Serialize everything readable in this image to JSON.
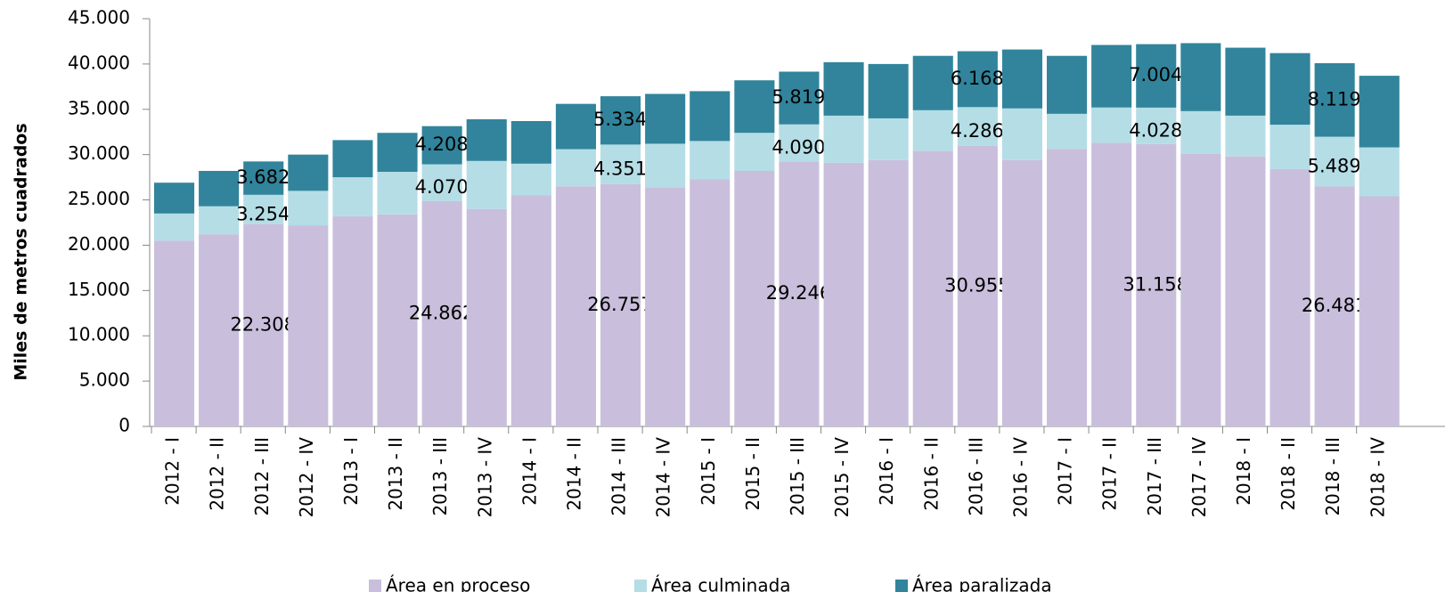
{
  "chart_data": {
    "type": "stacked_bar",
    "y_label": "Miles de metros cuadrados",
    "categories": [
      "2012 - I",
      "2012 - II",
      "2012 - III",
      "2012 - IV",
      "2013 - I",
      "2013 - II",
      "2013 - III",
      "2013 - IV",
      "2014 - I",
      "2014 - II",
      "2014 - III",
      "2014 - IV",
      "2015 - I",
      "2015 - II",
      "2015 - III",
      "2015 - IV",
      "2016 - I",
      "2016 - II",
      "2016 - III",
      "2016 - IV",
      "2017 - I",
      "2017 - II",
      "2017 - III",
      "2017 - IV",
      "2018 - I",
      "2018 - II",
      "2018 - III",
      "2018 - IV"
    ],
    "series": [
      {
        "name": "Área en proceso",
        "color": "#c9bfdc",
        "values": [
          20500,
          21200,
          22308,
          22200,
          23200,
          23400,
          24862,
          24000,
          25500,
          26500,
          26757,
          26400,
          27300,
          28200,
          29246,
          29100,
          29400,
          30400,
          30955,
          29400,
          30600,
          31300,
          31158,
          30100,
          29800,
          28400,
          26481,
          25400
        ],
        "value_labels": [
          null,
          null,
          "22.308",
          null,
          null,
          null,
          "24.862",
          null,
          null,
          null,
          "26.757",
          null,
          null,
          null,
          "29.246",
          null,
          null,
          null,
          "30.955",
          null,
          null,
          null,
          "31.158",
          null,
          null,
          null,
          "26.481",
          null
        ]
      },
      {
        "name": "Área culminada",
        "color": "#b5dde6",
        "values": [
          3000,
          3100,
          3254,
          3800,
          4300,
          4700,
          4070,
          5300,
          3500,
          4100,
          4351,
          4800,
          4200,
          4200,
          4090,
          5200,
          4600,
          4500,
          4286,
          5700,
          3900,
          3900,
          4028,
          4700,
          4500,
          4900,
          5489,
          5400
        ],
        "value_labels": [
          null,
          null,
          "3.254",
          null,
          null,
          null,
          "4.070",
          null,
          null,
          null,
          "4.351",
          null,
          null,
          null,
          "4.090",
          null,
          null,
          null,
          "4.286",
          null,
          null,
          null,
          "4.028",
          null,
          null,
          null,
          "5.489",
          null
        ]
      },
      {
        "name": "Área paralizada",
        "color": "#31849b",
        "values": [
          3400,
          3900,
          3682,
          4000,
          4100,
          4300,
          4208,
          4600,
          4700,
          5000,
          5334,
          5500,
          5500,
          5800,
          5819,
          5900,
          6000,
          6000,
          6168,
          6500,
          6400,
          6900,
          7004,
          7500,
          7500,
          7900,
          8119,
          7900
        ],
        "value_labels": [
          null,
          null,
          "3.682",
          null,
          null,
          null,
          "4.208",
          null,
          null,
          null,
          "5.334",
          null,
          null,
          null,
          "5.819",
          null,
          null,
          null,
          "6.168",
          null,
          null,
          null,
          "7.004",
          null,
          null,
          null,
          "8.119",
          null
        ]
      }
    ],
    "ylim": [
      0,
      45000
    ],
    "yticks": [
      0,
      {
        "value": 5000,
        "label": "5.000"
      },
      {
        "value": 10000,
        "label": "10.000"
      },
      {
        "value": 15000,
        "label": "15.000"
      },
      {
        "value": 20000,
        "label": "20.000"
      },
      {
        "value": 25000,
        "label": "25.000"
      },
      {
        "value": 30000,
        "label": "30.000"
      },
      {
        "value": 35000,
        "label": "35.000"
      },
      {
        "value": 40000,
        "label": "40.000"
      },
      {
        "value": 45000,
        "label": "45.000"
      }
    ]
  }
}
